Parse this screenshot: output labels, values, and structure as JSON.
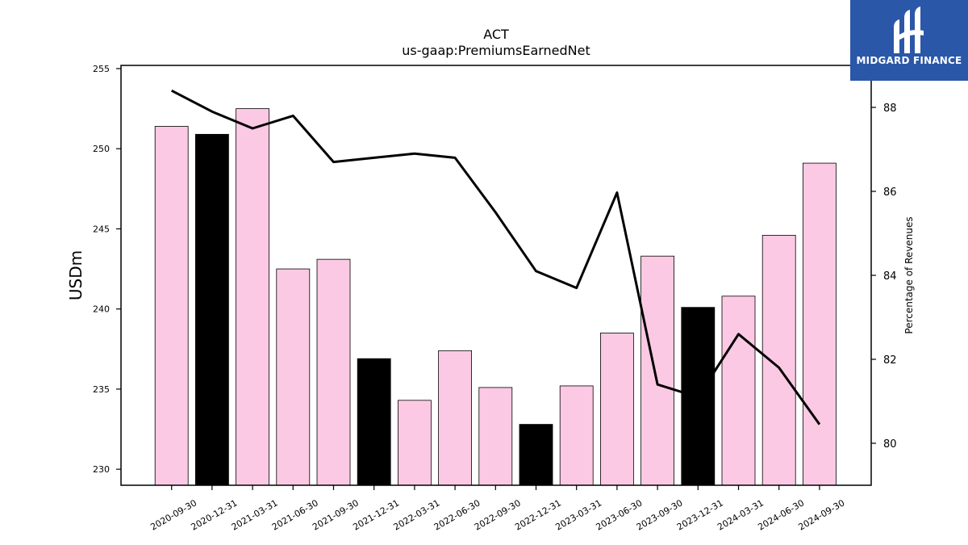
{
  "brand": {
    "name": "MIDGARD FINANCE",
    "bg_color": "#2b57a8"
  },
  "chart_data": {
    "type": "bar",
    "title": "ACT",
    "subtitle": "us-gaap:PremiumsEarnedNet",
    "ylabel": "USDm",
    "y2label": "Percentage of Revenues",
    "categories": [
      "2020-09-30",
      "2020-12-31",
      "2021-03-31",
      "2021-06-30",
      "2021-09-30",
      "2021-12-31",
      "2022-03-31",
      "2022-06-30",
      "2022-09-30",
      "2022-12-31",
      "2023-03-31",
      "2023-06-30",
      "2023-09-30",
      "2023-12-31",
      "2024-03-31",
      "2024-06-30",
      "2024-09-30"
    ],
    "series": [
      {
        "values": [
          251.4,
          250.9,
          252.5,
          242.5,
          243.1,
          236.9,
          234.3,
          237.4,
          235.1,
          232.8,
          235.2,
          238.5,
          243.3,
          240.1,
          240.8,
          244.6,
          249.1
        ],
        "axis": "left"
      },
      {
        "values": [
          88.4,
          87.9,
          87.5,
          87.8,
          86.7,
          86.8,
          86.9,
          86.8,
          85.5,
          84.1,
          83.7,
          85.97,
          81.4,
          81.1,
          82.6,
          81.8,
          80.45
        ],
        "axis": "right"
      }
    ],
    "bar_colors": [
      "#fbc9e3",
      "#000000",
      "#fbc9e3",
      "#fbc9e3",
      "#fbc9e3",
      "#000000",
      "#fbc9e3",
      "#fbc9e3",
      "#fbc9e3",
      "#000000",
      "#fbc9e3",
      "#fbc9e3",
      "#fbc9e3",
      "#000000",
      "#fbc9e3",
      "#fbc9e3",
      "#fbc9e3"
    ],
    "line_color": "#000000",
    "ylim": [
      229,
      255.2
    ],
    "yticks": [
      230,
      235,
      240,
      245,
      250,
      255
    ],
    "y2lim": [
      79,
      89
    ],
    "y2ticks": [
      80,
      82,
      84,
      86,
      88
    ],
    "grid": false
  }
}
